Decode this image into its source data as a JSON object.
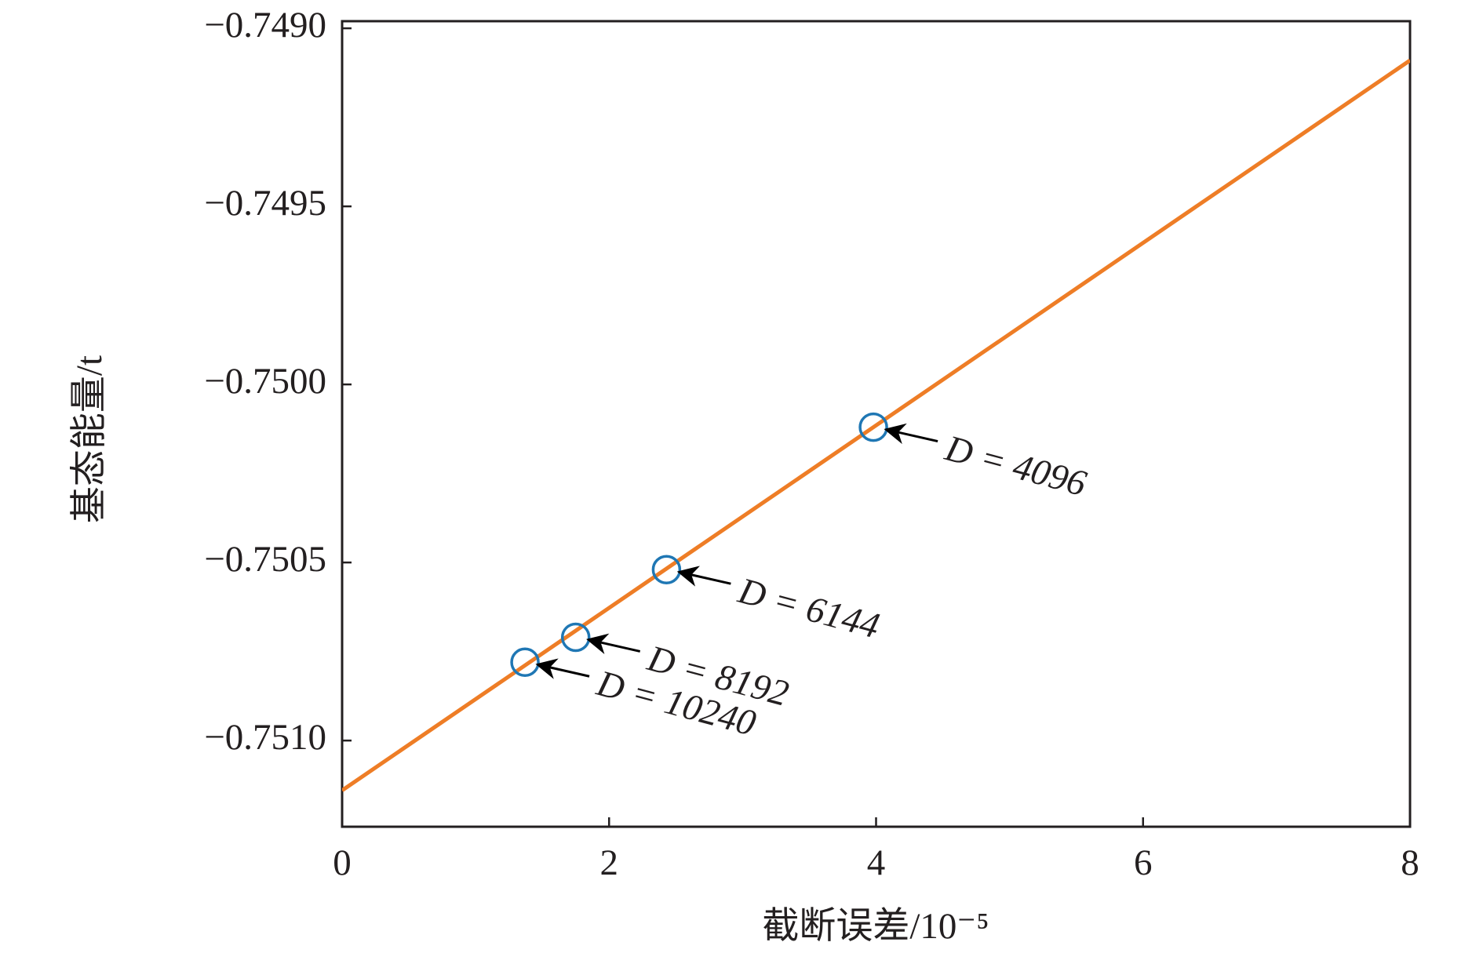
{
  "chart_data": {
    "type": "scatter",
    "x_label": "截断误差/10⁻⁵",
    "y_label": "基态能量/t",
    "xlim": [
      0,
      8
    ],
    "ylim": [
      -0.751242,
      -0.74898
    ],
    "xticks": [
      0,
      2,
      4,
      6,
      8
    ],
    "yticks": [
      {
        "value": -0.749,
        "label": "−0.7490"
      },
      {
        "value": -0.7495,
        "label": "−0.7495"
      },
      {
        "value": -0.75,
        "label": "−0.7500"
      },
      {
        "value": -0.7505,
        "label": "−0.7505"
      },
      {
        "value": -0.751,
        "label": "−0.7510"
      }
    ],
    "series": [
      {
        "kind": "scatter",
        "color": "#1f77b4",
        "x": [
          1.37,
          1.75,
          2.43,
          3.98
        ],
        "values": [
          -0.75078,
          -0.75071,
          -0.75052,
          -0.75012
        ],
        "point_labels": [
          "D = 10240",
          "D = 8192",
          "D = 6144",
          "D = 4096"
        ]
      },
      {
        "kind": "line",
        "color": "#ee7d26",
        "x": [
          0,
          8
        ],
        "values": [
          -0.75114,
          -0.74909
        ]
      }
    ]
  }
}
